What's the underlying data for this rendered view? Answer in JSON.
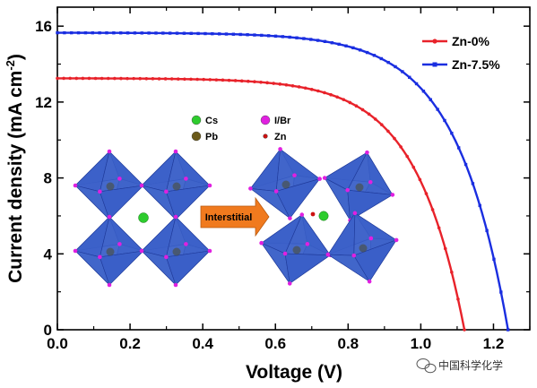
{
  "chart_data": {
    "type": "line",
    "xlabel": "Voltage (V)",
    "ylabel": "Current density (mA cm",
    "ylabel_sup": "-2",
    "ylabel_close": ")",
    "xlim": [
      0.0,
      1.3
    ],
    "ylim": [
      0,
      17
    ],
    "xticks": [
      0.0,
      0.2,
      0.4,
      0.6,
      0.8,
      1.0,
      1.2
    ],
    "xtick_labels": [
      "0.0",
      "0.2",
      "0.4",
      "0.6",
      "0.8",
      "1.0",
      "1.2"
    ],
    "yticks": [
      0,
      4,
      8,
      12,
      16
    ],
    "ytick_labels": [
      "0",
      "4",
      "8",
      "12",
      "16"
    ],
    "grid": false,
    "legend_position": "top-right",
    "series": [
      {
        "name": "Zn-0%",
        "color": "#e8222a",
        "marker": "circle",
        "params": {
          "jsc": 13.25,
          "voc": 1.12,
          "n": 2.45
        },
        "x": [
          0.0,
          0.1,
          0.2,
          0.3,
          0.4,
          0.5,
          0.6,
          0.7,
          0.8,
          0.85,
          0.9,
          0.95,
          1.0,
          1.05,
          1.08,
          1.1,
          1.12
        ],
        "values": [
          13.25,
          13.24,
          13.23,
          13.2,
          13.16,
          13.08,
          12.92,
          12.6,
          11.9,
          11.2,
          10.0,
          8.4,
          6.2,
          3.5,
          1.9,
          0.8,
          0.0
        ]
      },
      {
        "name": "Zn-7.5%",
        "color": "#1a2ee0",
        "marker": "square",
        "params": {
          "jsc": 15.65,
          "voc": 1.24,
          "n": 2.6
        },
        "x": [
          0.0,
          0.1,
          0.2,
          0.3,
          0.4,
          0.5,
          0.6,
          0.7,
          0.8,
          0.9,
          0.95,
          1.0,
          1.05,
          1.1,
          1.15,
          1.2,
          1.24
        ],
        "values": [
          15.65,
          15.64,
          15.63,
          15.6,
          15.56,
          15.5,
          15.38,
          15.15,
          14.75,
          13.95,
          13.2,
          12.1,
          10.5,
          8.3,
          5.6,
          2.5,
          0.0
        ]
      }
    ]
  },
  "inset": {
    "legend": [
      {
        "label": "Cs",
        "color": "#2ecc2e",
        "icon": "cs-atom-icon"
      },
      {
        "label": "I/Br",
        "color": "#e020e0",
        "icon": "halide-atom-icon"
      },
      {
        "label": "Pb",
        "color": "#6b5a1a",
        "icon": "pb-atom-icon"
      },
      {
        "label": "Zn",
        "color": "#cc1111",
        "icon": "zn-atom-icon"
      }
    ],
    "arrow_label": "Interstitial",
    "octahedron_color": "#3a5fc8",
    "arrow_color": "#f07a1e"
  },
  "watermark": {
    "text": "中国科学化学",
    "icon": "wechat-icon"
  }
}
